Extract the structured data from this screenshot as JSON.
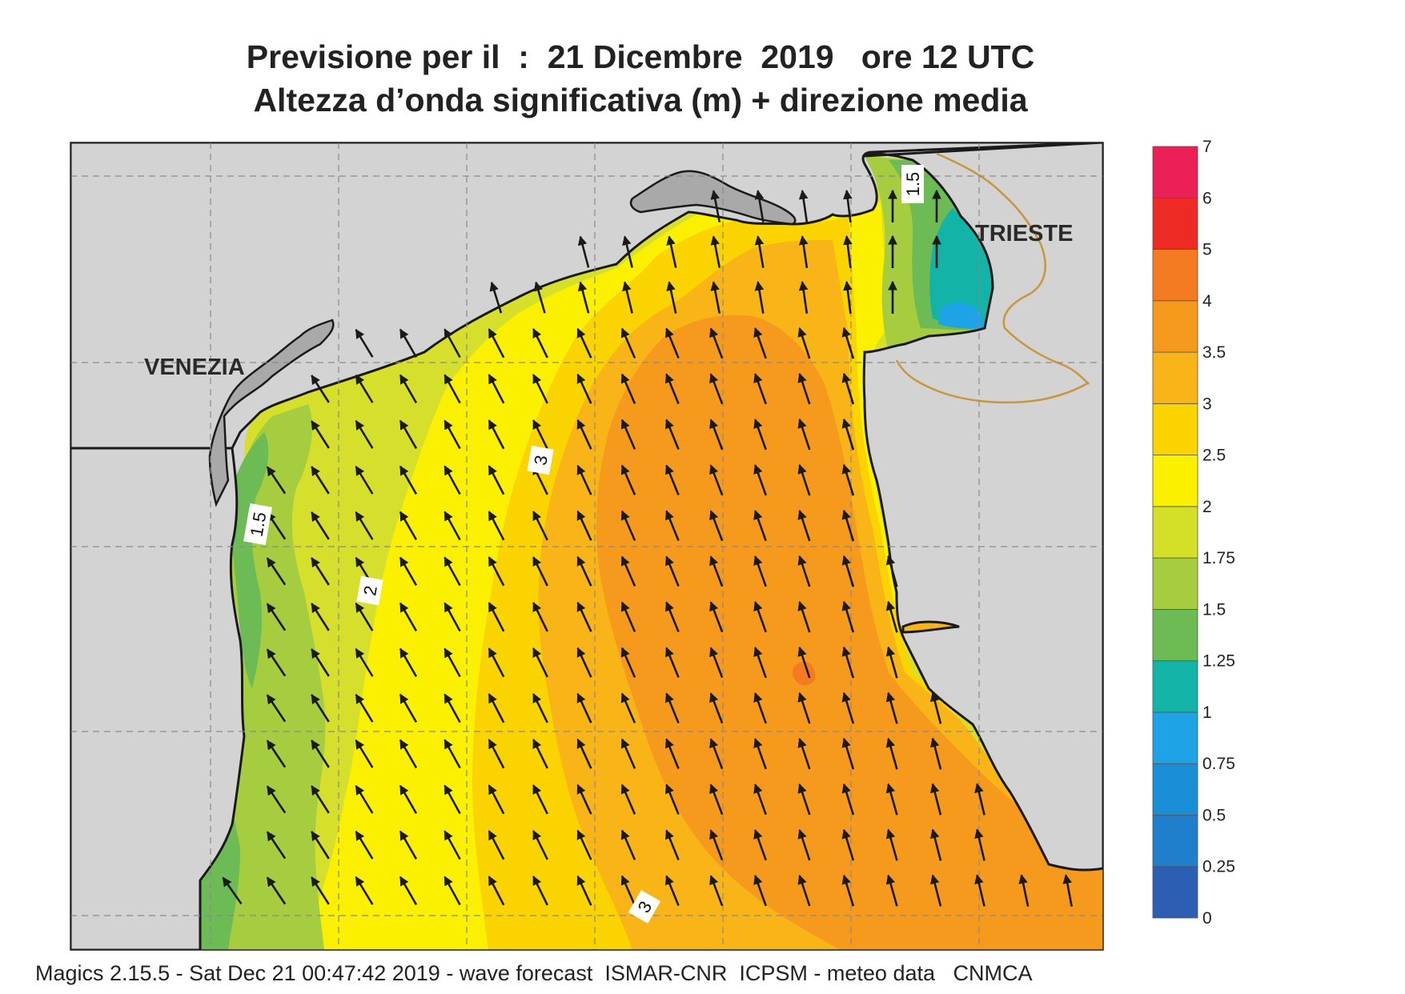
{
  "header": {
    "title_line1": "Previsione per il  :  21 Dicembre  2019   ore 12 UTC",
    "title_line2": "Altezza d’onda significativa (m) + direzione media"
  },
  "map": {
    "cities": {
      "venezia": "VENEZIA",
      "trieste": "TRIESTE"
    },
    "contour_labels": {
      "c1": "1.5",
      "c2": "1.5",
      "c3": "2",
      "c4": "3",
      "c5": "3"
    },
    "colors": {
      "land": "#d3d3d3",
      "coastline": "#1a1a1a",
      "border": "#c8963c"
    }
  },
  "colorbar": {
    "ticks": [
      "0",
      "0.25",
      "0.5",
      "0.75",
      "1",
      "1.25",
      "1.5",
      "1.75",
      "2",
      "2.5",
      "3",
      "3.5",
      "4",
      "5",
      "6",
      "7"
    ],
    "colors": [
      "#2c5fb4",
      "#1f7fcc",
      "#1a8ed6",
      "#1ea3e6",
      "#13b3a8",
      "#6cbb54",
      "#a6cc3f",
      "#d4df28",
      "#fbf000",
      "#fbd400",
      "#f9b418",
      "#f69a1e",
      "#f47b22",
      "#ed2a24",
      "#ec1f56"
    ]
  },
  "footer": {
    "text": "Magics 2.15.5 - Sat Dec 21 00:47:42 2019 - wave forecast  ISMAR-CNR  ICPSM - meteo data   CNMCA"
  }
}
